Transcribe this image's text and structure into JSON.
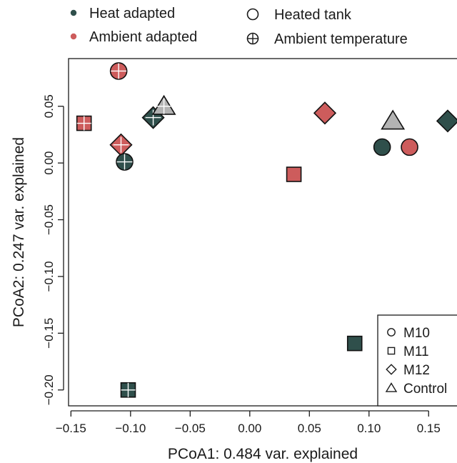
{
  "chart_data": {
    "type": "scatter",
    "xlabel": "PCoA1: 0.484 var. explained",
    "ylabel": "PCoA2: 0.247 var. explained",
    "xlim": [
      -0.152,
      0.175
    ],
    "ylim": [
      -0.214,
      0.092
    ],
    "xticks": [
      -0.15,
      -0.1,
      -0.05,
      0.0,
      0.05,
      0.1,
      0.15
    ],
    "xtick_labels": [
      "−0.15",
      "−0.10",
      "−0.05",
      "0.00",
      "0.05",
      "0.10",
      "0.15"
    ],
    "yticks": [
      0.05,
      0.0,
      -0.05,
      -0.1,
      -0.15,
      -0.2
    ],
    "ytick_labels": [
      "0.05",
      "0.00",
      "−0.05",
      "−0.10",
      "−0.15",
      "−0.20"
    ],
    "grid": false,
    "colors": {
      "heat_adapted": "#2f4f4b",
      "ambient_adapted": "#cd5c5c",
      "control": "#b3b3b3"
    },
    "top_legend": {
      "position": "top",
      "items": [
        {
          "symbol": "dot",
          "color_key": "heat_adapted",
          "label": "Heat adapted"
        },
        {
          "symbol": "dot",
          "color_key": "ambient_adapted",
          "label": "Ambient adapted"
        },
        {
          "symbol": "circle",
          "label": "Heated tank"
        },
        {
          "symbol": "circle-plus",
          "label": "Ambient temperature"
        }
      ]
    },
    "shape_legend": {
      "position": "bottom-right",
      "items": [
        {
          "shape": "circle",
          "label": "M10"
        },
        {
          "shape": "square",
          "label": "M11"
        },
        {
          "shape": "diamond",
          "label": "M12"
        },
        {
          "shape": "triangle",
          "label": "Control"
        }
      ]
    },
    "points": [
      {
        "x": -0.11,
        "y": 0.081,
        "shape": "circle",
        "group": "ambient_adapted",
        "treatment": "ambient"
      },
      {
        "x": -0.139,
        "y": 0.035,
        "shape": "square",
        "group": "ambient_adapted",
        "treatment": "ambient"
      },
      {
        "x": -0.081,
        "y": 0.04,
        "shape": "diamond",
        "group": "heat_adapted",
        "treatment": "ambient"
      },
      {
        "x": -0.072,
        "y": 0.05,
        "shape": "triangle",
        "group": "control",
        "treatment": "ambient"
      },
      {
        "x": -0.108,
        "y": 0.016,
        "shape": "diamond",
        "group": "ambient_adapted",
        "treatment": "ambient"
      },
      {
        "x": -0.105,
        "y": 0.001,
        "shape": "circle",
        "group": "heat_adapted",
        "treatment": "ambient"
      },
      {
        "x": -0.102,
        "y": -0.2,
        "shape": "square",
        "group": "heat_adapted",
        "treatment": "ambient"
      },
      {
        "x": 0.063,
        "y": 0.044,
        "shape": "diamond",
        "group": "ambient_adapted",
        "treatment": "heated"
      },
      {
        "x": 0.037,
        "y": -0.01,
        "shape": "square",
        "group": "ambient_adapted",
        "treatment": "heated"
      },
      {
        "x": 0.12,
        "y": 0.037,
        "shape": "triangle",
        "group": "control",
        "treatment": "heated"
      },
      {
        "x": 0.111,
        "y": 0.014,
        "shape": "circle",
        "group": "heat_adapted",
        "treatment": "heated"
      },
      {
        "x": 0.134,
        "y": 0.014,
        "shape": "circle",
        "group": "ambient_adapted",
        "treatment": "heated"
      },
      {
        "x": 0.166,
        "y": 0.037,
        "shape": "diamond",
        "group": "heat_adapted",
        "treatment": "heated"
      },
      {
        "x": 0.088,
        "y": -0.159,
        "shape": "square",
        "group": "heat_adapted",
        "treatment": "heated"
      }
    ]
  }
}
